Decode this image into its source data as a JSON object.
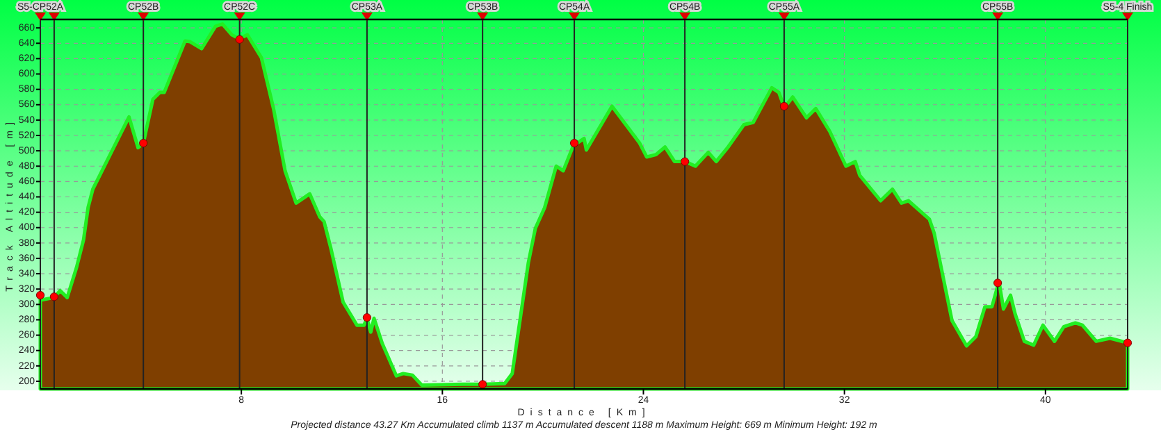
{
  "chart_data": {
    "type": "area",
    "xlabel": "Distance [Km]",
    "ylabel": "Track Altitude [m]",
    "annotations": [
      "Projected distance 43.27 Km   Accumulated climb 1137 m   Accumulated descent 1188 m   Maximum Height: 669 m   Minimum Height: 192 m"
    ],
    "x": [
      0,
      0.06,
      0.55,
      0.79,
      1.07,
      1.44,
      1.72,
      1.9,
      2.09,
      2.64,
      3.53,
      3.89,
      4.1,
      4.48,
      4.76,
      4.93,
      5.76,
      5.96,
      6.42,
      6.97,
      7.25,
      7.62,
      7.91,
      8.24,
      8.8,
      9.28,
      9.74,
      10.18,
      10.72,
      11.12,
      11.29,
      11.57,
      12.05,
      12.6,
      12.88,
      13.0,
      13.15,
      13.28,
      13.61,
      14.17,
      14.44,
      14.81,
      15.18,
      16.82,
      17.6,
      18.48,
      18.78,
      19.42,
      19.7,
      20.07,
      20.53,
      20.81,
      21.25,
      21.36,
      21.64,
      21.73,
      22.75,
      23.85,
      24.13,
      24.5,
      24.86,
      25.24,
      25.66,
      26.07,
      26.58,
      26.9,
      27.35,
      28.0,
      28.37,
      29.11,
      29.39,
      29.61,
      29.94,
      30.49,
      30.86,
      31.42,
      32.06,
      32.43,
      32.61,
      33.44,
      33.91,
      34.27,
      34.55,
      35.38,
      35.57,
      36.28,
      36.49,
      36.86,
      37.23,
      37.59,
      37.87,
      38.15,
      38.33,
      38.61,
      38.79,
      39.16,
      39.53,
      39.9,
      40.36,
      40.73,
      41.19,
      41.47,
      42.02,
      42.57,
      43.27
    ],
    "series": [
      {
        "color": "#7f3f00",
        "values": [
          311,
          306,
          309,
          318,
          309,
          348,
          384,
          426,
          450,
          486,
          544,
          504,
          510,
          567,
          576,
          576,
          643,
          642,
          633,
          662,
          665,
          651,
          646,
          651,
          621,
          555,
          474,
          432,
          444,
          414,
          408,
          372,
          303,
          273,
          273,
          282,
          264,
          282,
          249,
          207,
          210,
          208,
          195,
          196,
          196,
          197,
          210,
          354,
          399,
          426,
          480,
          474,
          510,
          510,
          516,
          501,
          558,
          510,
          492,
          495,
          505,
          486,
          486,
          480,
          498,
          486,
          504,
          534,
          537,
          582,
          576,
          556,
          570,
          543,
          555,
          525,
          480,
          486,
          468,
          435,
          450,
          432,
          435,
          411,
          393,
          279,
          267,
          246,
          258,
          297,
          297,
          330,
          294,
          312,
          288,
          252,
          247,
          273,
          252,
          271,
          276,
          273,
          252,
          256,
          250
        ]
      },
      {
        "type": "scatter",
        "color": "#ff0000",
        "marker": "circle",
        "x": [
          0,
          0.55,
          4.1,
          7.93,
          13.0,
          17.6,
          21.25,
          25.65,
          29.6,
          38.1,
          43.27
        ],
        "values": [
          312,
          310,
          510,
          645,
          283,
          196,
          510,
          486,
          558,
          328,
          250
        ]
      }
    ],
    "ref_lines": [
      {
        "axis": "x",
        "value": 0,
        "label": "S5-CP52A"
      },
      {
        "axis": "x",
        "value": 0.55,
        "label": null
      },
      {
        "axis": "x",
        "value": 4.1,
        "label": "CP52B"
      },
      {
        "axis": "x",
        "value": 7.93,
        "label": "CP52C"
      },
      {
        "axis": "x",
        "value": 13.0,
        "label": "CP53A"
      },
      {
        "axis": "x",
        "value": 17.6,
        "label": "CP53B"
      },
      {
        "axis": "x",
        "value": 21.25,
        "label": "CP54A"
      },
      {
        "axis": "x",
        "value": 25.65,
        "label": "CP54B"
      },
      {
        "axis": "x",
        "value": 29.6,
        "label": "CP55A"
      },
      {
        "axis": "x",
        "value": 38.1,
        "label": "CP55B"
      },
      {
        "axis": "x",
        "value": 43.27,
        "label": "S5-4 Finish"
      }
    ],
    "xlim": [
      0,
      43.27
    ],
    "xticks": [
      8,
      16,
      24,
      32,
      40
    ],
    "ylim": [
      190,
      671
    ],
    "yticks": [
      200,
      220,
      240,
      260,
      280,
      300,
      320,
      340,
      360,
      380,
      400,
      420,
      440,
      460,
      480,
      500,
      520,
      540,
      560,
      580,
      600,
      620,
      640,
      660
    ],
    "grid": true
  }
}
